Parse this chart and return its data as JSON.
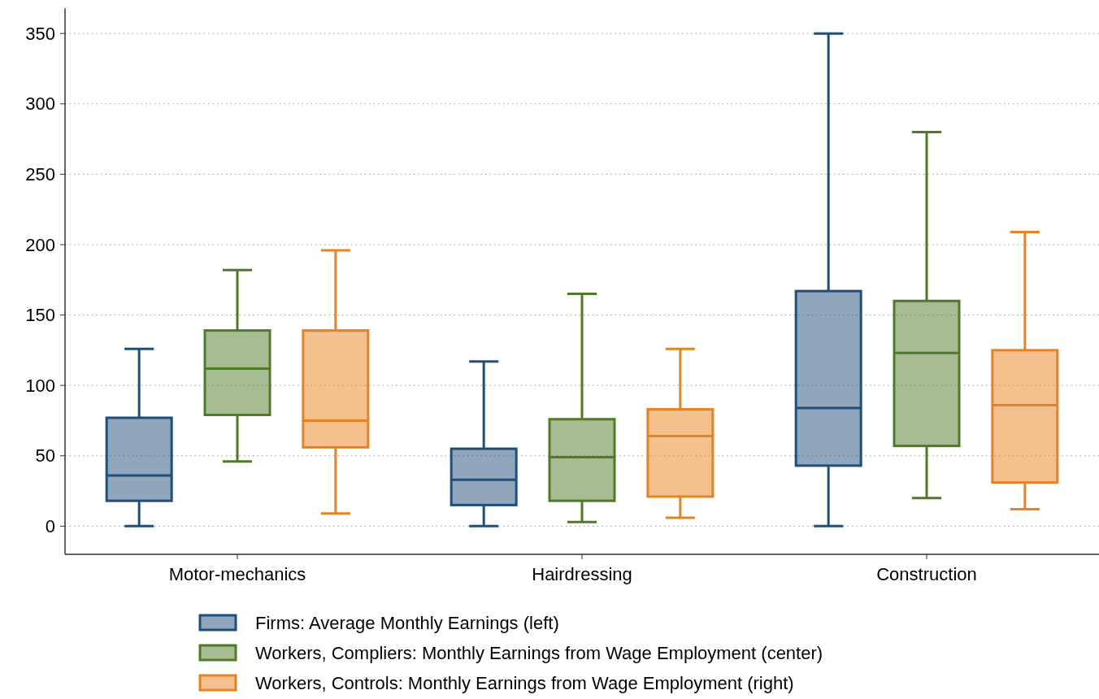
{
  "chart_data": {
    "type": "box",
    "categories": [
      "Motor-mechanics",
      "Hairdressing",
      "Construction"
    ],
    "ylim": [
      -20,
      368
    ],
    "yticks": [
      0,
      50,
      100,
      150,
      200,
      250,
      300,
      350
    ],
    "grid": "y",
    "legend": "bottom",
    "series": [
      {
        "name": "Firms: Average Monthly Earnings (left)",
        "color": "#1f4e79",
        "boxes": [
          {
            "low": 0,
            "q1": 18,
            "median": 36,
            "q3": 77,
            "high": 126
          },
          {
            "low": 0,
            "q1": 15,
            "median": 33,
            "q3": 55,
            "high": 117
          },
          {
            "low": 0,
            "q1": 43,
            "median": 84,
            "q3": 167,
            "high": 350
          }
        ]
      },
      {
        "name": "Workers, Compliers: Monthly Earnings from Wage Employment (center)",
        "color": "#4f7a28",
        "boxes": [
          {
            "low": 46,
            "q1": 79,
            "median": 112,
            "q3": 139,
            "high": 182
          },
          {
            "low": 3,
            "q1": 18,
            "median": 49,
            "q3": 76,
            "high": 165
          },
          {
            "low": 20,
            "q1": 57,
            "median": 123,
            "q3": 160,
            "high": 280
          }
        ]
      },
      {
        "name": "Workers, Controls: Monthly Earnings from Wage Employment (right)",
        "color": "#e8821e",
        "boxes": [
          {
            "low": 9,
            "q1": 56,
            "median": 75,
            "q3": 139,
            "high": 196
          },
          {
            "low": 6,
            "q1": 21,
            "median": 64,
            "q3": 83,
            "high": 126
          },
          {
            "low": 12,
            "q1": 31,
            "median": 86,
            "q3": 125,
            "high": 209
          }
        ]
      }
    ]
  }
}
